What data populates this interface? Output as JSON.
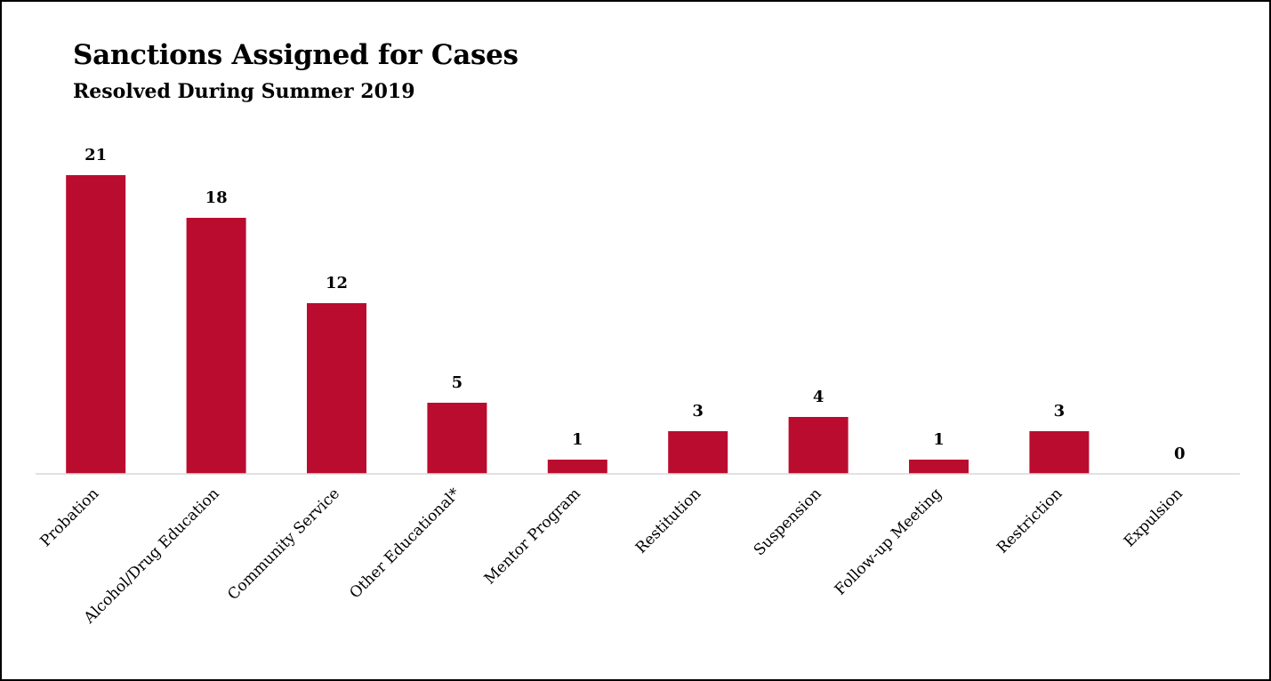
{
  "chart_data": {
    "type": "bar",
    "title": "Sanctions Assigned for Cases",
    "subtitle": "Resolved During Summer 2019",
    "categories": [
      "Probation",
      "Alcohol/Drug Education",
      "Community Service",
      "Other Educational*",
      "Mentor Program",
      "Restitution",
      "Suspension",
      "Follow-up Meeting",
      "Restriction",
      "Expulsion"
    ],
    "values": [
      21,
      18,
      12,
      5,
      1,
      3,
      4,
      1,
      3,
      0
    ],
    "xlabel": "",
    "ylabel": "",
    "ylim": [
      0,
      21
    ],
    "grid": false,
    "data_labels": true,
    "colors": {
      "bar": "#ba0c2f",
      "axis": "#d9d9d9"
    }
  }
}
